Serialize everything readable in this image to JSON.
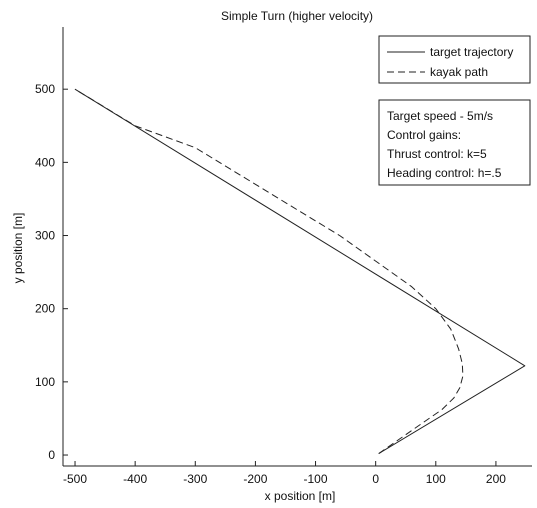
{
  "chart_data": {
    "type": "line",
    "title": "Simple Turn (higher velocity)",
    "xlabel": "x position [m]",
    "ylabel": "y position [m]",
    "xlim": [
      -520,
      260
    ],
    "ylim": [
      -15,
      585
    ],
    "x_ticks": [
      -500,
      -400,
      -300,
      -200,
      -100,
      0,
      100,
      200
    ],
    "y_ticks": [
      0,
      100,
      200,
      300,
      400,
      500
    ],
    "grid": false,
    "legend_position": "top-right",
    "series": [
      {
        "name": "target trajectory",
        "style": "solid",
        "points": [
          [
            5,
            2
          ],
          [
            248,
            122
          ],
          [
            -500,
            500
          ]
        ]
      },
      {
        "name": "kayak path",
        "style": "dashed",
        "points": [
          [
            5,
            2
          ],
          [
            40,
            22
          ],
          [
            80,
            45
          ],
          [
            110,
            62
          ],
          [
            130,
            78
          ],
          [
            140,
            92
          ],
          [
            145,
            108
          ],
          [
            144,
            125
          ],
          [
            138,
            145
          ],
          [
            125,
            172
          ],
          [
            100,
            200
          ],
          [
            60,
            230
          ],
          [
            0,
            265
          ],
          [
            -60,
            300
          ],
          [
            -120,
            330
          ],
          [
            -200,
            370
          ],
          [
            -300,
            420
          ],
          [
            -400,
            450
          ],
          [
            -500,
            500
          ]
        ]
      }
    ],
    "annotation": [
      "Target speed - 5m/s",
      "Control gains:",
      "Thrust control: k=5",
      "Heading control: h=.5"
    ]
  }
}
